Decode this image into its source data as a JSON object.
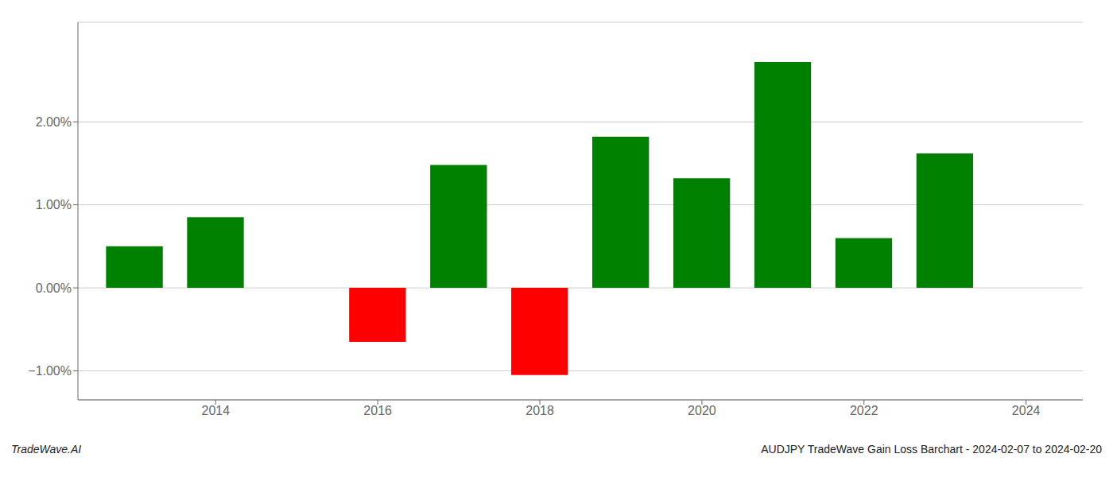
{
  "chart_data": {
    "type": "bar",
    "x": [
      2013,
      2014,
      2016,
      2017,
      2018,
      2019,
      2020,
      2021,
      2022,
      2023
    ],
    "values": [
      0.5,
      0.85,
      -0.65,
      1.48,
      -1.05,
      1.82,
      1.32,
      2.72,
      0.6,
      1.62
    ],
    "colors": [
      "#008000",
      "#008000",
      "#ff0000",
      "#008000",
      "#ff0000",
      "#008000",
      "#008000",
      "#008000",
      "#008000",
      "#008000"
    ],
    "xlim": [
      2012.3,
      2024.7
    ],
    "xticks": [
      2014,
      2016,
      2018,
      2020,
      2022,
      2024
    ],
    "ylim": [
      -1.35,
      3.2
    ],
    "yticks": [
      {
        "value": -1.0,
        "label": "−1.00%"
      },
      {
        "value": 0.0,
        "label": "0.00%"
      },
      {
        "value": 1.0,
        "label": "1.00%"
      },
      {
        "value": 2.0,
        "label": "2.00%"
      }
    ],
    "grid": true,
    "annotations": [
      "TradeWave.AI",
      "AUDJPY TradeWave Gain Loss Barchart - 2024-02-07 to 2024-02-20"
    ]
  }
}
